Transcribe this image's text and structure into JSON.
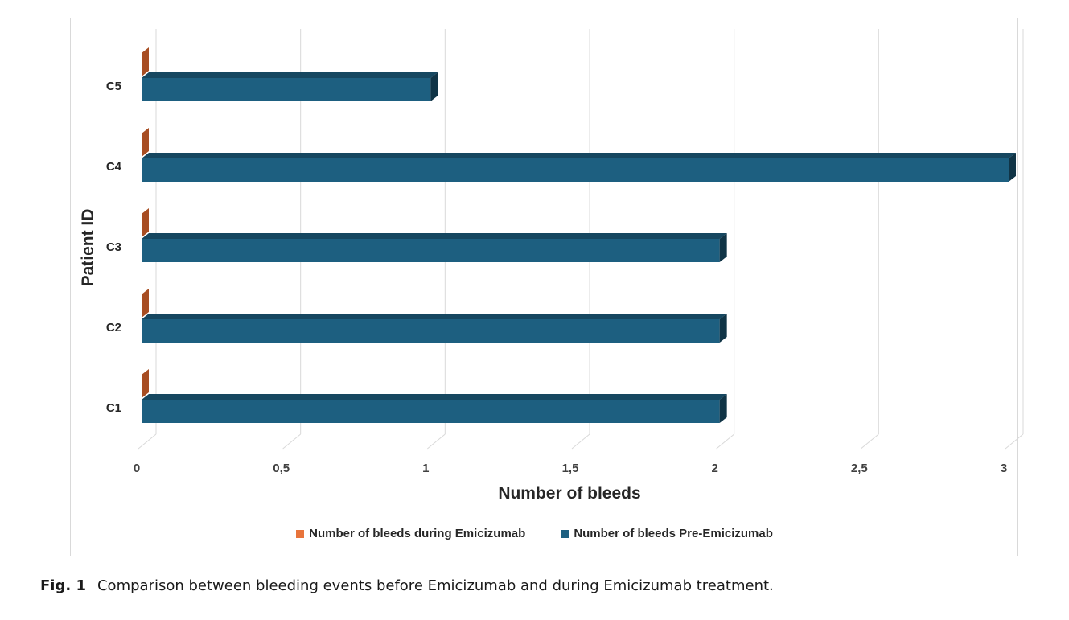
{
  "chart_data": {
    "type": "bar",
    "orientation": "horizontal",
    "style": "3d",
    "categories": [
      "C1",
      "C2",
      "C3",
      "C4",
      "C5"
    ],
    "series": [
      {
        "name": "Number of bleeds during Emicizumab",
        "values": [
          0,
          0,
          0,
          0,
          0
        ],
        "color": "#c55a28"
      },
      {
        "name": "Number of bleeds Pre-Emicizumab",
        "values": [
          2,
          2,
          2,
          3,
          1
        ],
        "color": "#1d5f80"
      }
    ],
    "x_ticks": [
      "0",
      "0,5",
      "1",
      "1,5",
      "2",
      "2,5",
      "3"
    ],
    "xlim": [
      0,
      3
    ],
    "xlabel": "Number of bleeds",
    "ylabel": "Patient ID",
    "grid": "vertical",
    "legend_position": "bottom"
  },
  "caption": {
    "label": "Fig. 1",
    "text": "Comparison between bleeding events before Emicizumab and during Emicizumab treatment."
  }
}
